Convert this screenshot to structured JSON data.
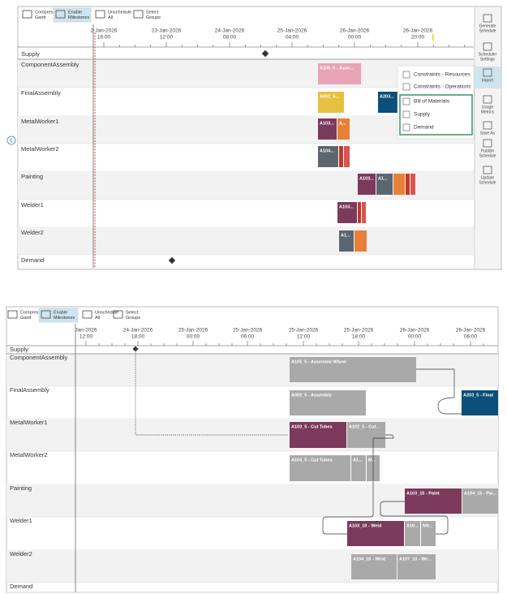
{
  "top": {
    "toolbar": [
      [
        "Compress",
        "Gantt"
      ],
      [
        "Enable",
        "Milestones"
      ],
      [
        "Unschedule",
        "All"
      ],
      [
        "Select",
        "Groups"
      ]
    ],
    "timeline": [
      [
        "2-Jan-2026",
        "16:00"
      ],
      [
        "23-Jan-2026",
        "12:00"
      ],
      [
        "24-Jan-2026",
        "08:00"
      ],
      [
        "25-Jan-2026",
        "04:00"
      ],
      [
        "26-Jan-2026",
        "00:00"
      ],
      [
        "26-Jan-2026",
        "20:00"
      ]
    ],
    "rows": [
      "Supply",
      "ComponentAssembly",
      "FinalAssembly",
      "MetalWorker1",
      "MetalWorker2",
      "Painting",
      "Welder1",
      "Welder2",
      "Demand"
    ],
    "bars": [
      "A105_5 - Asse...",
      "A002_5...",
      "A203...",
      "A103...",
      "A...",
      "A104...",
      "A103...",
      "A1...",
      "A103...",
      "A1..."
    ],
    "menu": [
      "Constraints - Resources",
      "Constraints - Operations",
      "Bill of Materials",
      "Supply",
      "Demand"
    ],
    "sidebar": [
      [
        "Generate",
        "Schedule"
      ],
      [
        "Scheduler",
        "Settings"
      ],
      [
        "Import"
      ],
      [
        "Usage",
        "Metrics"
      ],
      [
        "Save As"
      ],
      [
        "Publish",
        "Schedule"
      ],
      [
        "Update",
        "Schedule"
      ]
    ]
  },
  "bottom": {
    "toolbar": [
      [
        "Compress",
        "Gantt"
      ],
      [
        "Enable",
        "Milestones"
      ],
      [
        "Unschedule",
        "All"
      ],
      [
        "Select",
        "Groups"
      ]
    ],
    "timeline": [
      [
        "Jan-2026",
        "12:00"
      ],
      [
        "24-Jan-2026",
        "18:00"
      ],
      [
        "25-Jan-2026",
        "00:00"
      ],
      [
        "25-Jan-2026",
        "06:00"
      ],
      [
        "25-Jan-2026",
        "12:00"
      ],
      [
        "25-Jan-2026",
        "18:00"
      ],
      [
        "26-Jan-2026",
        "00:00"
      ],
      [
        "26-Jan-2026",
        "06:00"
      ]
    ],
    "rows": [
      "Supply",
      "ComponentAssembly",
      "FinalAssembly",
      "MetalWorker1",
      "MetalWorker2",
      "Painting",
      "Welder1",
      "Welder2",
      "Demand"
    ],
    "bars": [
      "A105_5 - Assemble Wheel",
      "A002_5 - Assembly",
      "A203_5 - Final",
      "A103_5 - Cut Tubes",
      "A102_5 - Cut...",
      "A104_5 - Cut Tubes",
      "A1...",
      "M...",
      "A103_15 - Paint",
      "A104_15 - Pai...",
      "A103_10 - Weld",
      "A10...",
      "M0...",
      "A104_10 - Weld",
      "A107_10 - We..."
    ]
  }
}
